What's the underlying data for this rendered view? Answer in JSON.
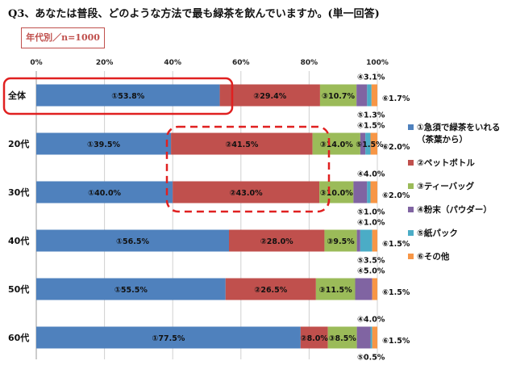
{
  "title": "Q3、あなたは普段、どのような方法で最も緑茶を飲んでいますか。(単一回答)",
  "subset_label": "年代別／n=1000",
  "chart_data": {
    "type": "bar",
    "orientation": "horizontal",
    "stacked": true,
    "title": "Q3、あなたは普段、どのような方法で最も緑茶を飲んでいますか。(単一回答)",
    "xlim": [
      0,
      100
    ],
    "x_ticks": [
      "0%",
      "20%",
      "40%",
      "60%",
      "80%",
      "100%"
    ],
    "grid": true,
    "legend_position": "right",
    "categories": [
      "全体",
      "20代",
      "30代",
      "40代",
      "50代",
      "60代"
    ],
    "series": [
      {
        "name": "①急須で緑茶をいれる（茶葉から）",
        "marker": "①",
        "color": "#4f81bd",
        "values": [
          53.8,
          39.5,
          40.0,
          56.5,
          55.5,
          77.5
        ]
      },
      {
        "name": "②ペットボトル",
        "marker": "②",
        "color": "#c0504d",
        "values": [
          29.4,
          41.5,
          43.0,
          28.0,
          26.5,
          8.0
        ]
      },
      {
        "name": "③ティーバッグ",
        "marker": "③",
        "color": "#9bbb59",
        "values": [
          10.7,
          14.0,
          10.0,
          9.5,
          11.5,
          8.5
        ]
      },
      {
        "name": "④粉末（パウダー）",
        "marker": "④",
        "color": "#8064a2",
        "values": [
          3.1,
          1.5,
          4.0,
          1.0,
          5.0,
          4.0
        ]
      },
      {
        "name": "⑤紙パック",
        "marker": "⑤",
        "color": "#4bacc6",
        "values": [
          1.3,
          1.5,
          1.0,
          3.5,
          null,
          0.5
        ]
      },
      {
        "name": "⑥その他",
        "marker": "⑥",
        "color": "#f79646",
        "values": [
          1.7,
          2.0,
          2.0,
          1.5,
          1.5,
          1.5
        ]
      }
    ]
  },
  "legend": [
    "①急須で緑茶をいれる（茶葉から）",
    "②ペットボトル",
    "③ティーバッグ",
    "④粉末（パウダー）",
    "⑤紙パック",
    "⑥その他"
  ],
  "highlight_color": "#e02020"
}
